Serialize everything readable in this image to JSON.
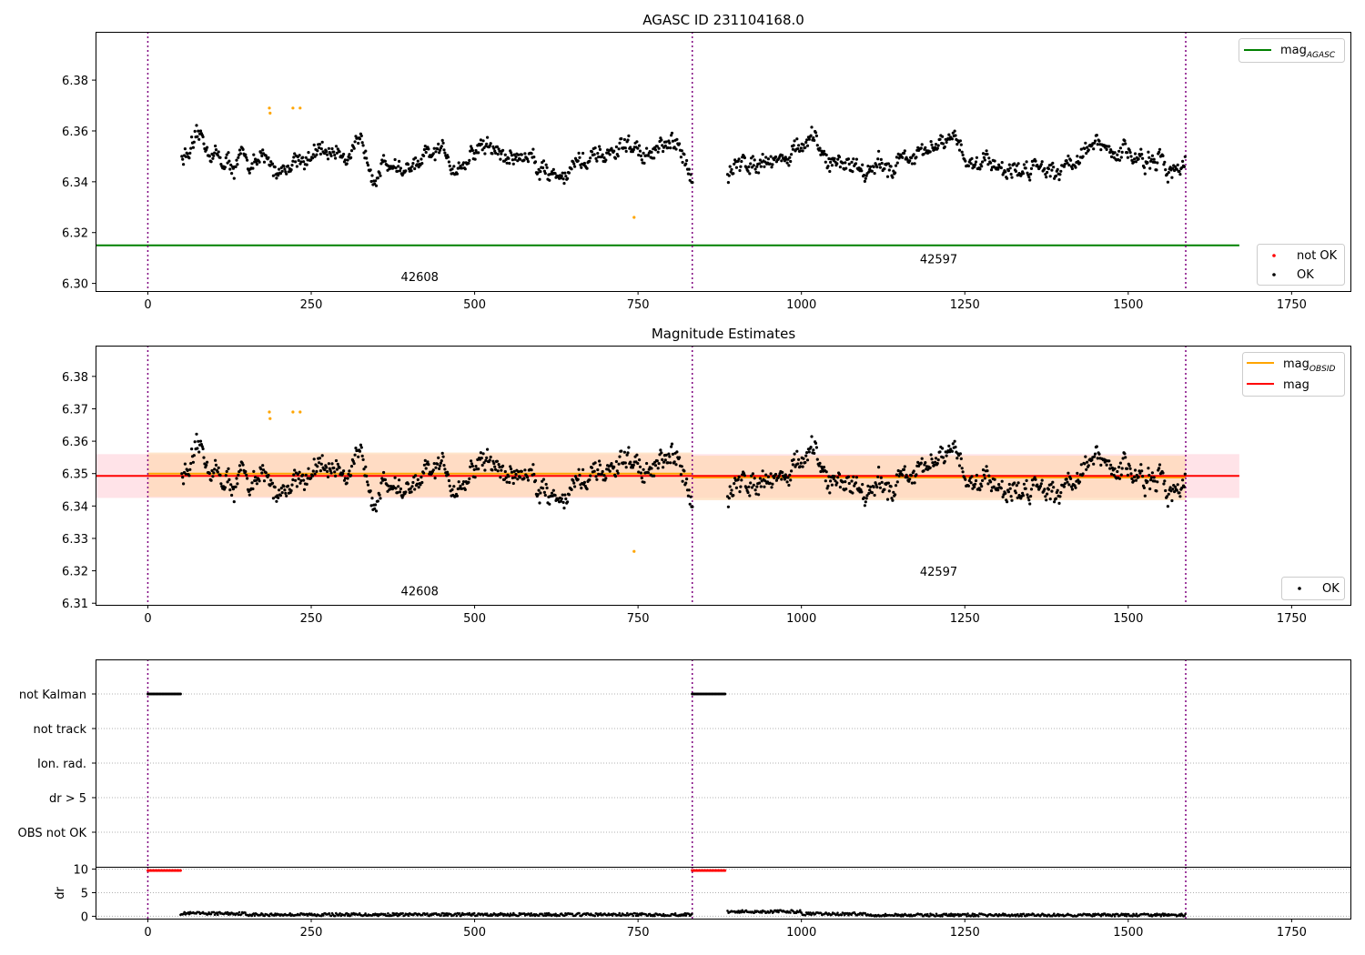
{
  "colors": {
    "ok": "#000000",
    "not_ok": "#ff0000",
    "flagged": "#ffa500",
    "mag_agasc": "#008000",
    "mag_obsid": "#ffa500",
    "mag": "#ff0000",
    "obs_boundary": "#800080",
    "band_mag": "#ffc0cb",
    "band_obsid": "#ffd8b0"
  },
  "chart_data": [
    {
      "type": "scatter",
      "title": "AGASC ID 231104168.0",
      "xlim": [
        -80,
        1840
      ],
      "ylim": [
        6.297,
        6.399
      ],
      "xticks": [
        0,
        250,
        500,
        750,
        1000,
        1250,
        1500,
        1750
      ],
      "yticks": [
        6.3,
        6.32,
        6.34,
        6.36,
        6.38
      ],
      "ytick_labels": [
        "6.30",
        "6.32",
        "6.34",
        "6.36",
        "6.38"
      ],
      "grid": false,
      "series": [
        {
          "name": "OK",
          "role": "ok",
          "x_range": [
            52,
            1588
          ],
          "y_mean": 6.349,
          "y_spread": 0.0075
        },
        {
          "name": "not OK",
          "role": "not_ok",
          "points": []
        },
        {
          "role": "flagged",
          "points": [
            [
              186,
              6.369
            ],
            [
              187,
              6.367
            ],
            [
              222,
              6.369
            ],
            [
              233,
              6.369
            ],
            [
              744,
              6.326
            ]
          ]
        }
      ],
      "lines": [
        {
          "name": "mag_AGASC",
          "label_main": "mag",
          "label_sub": "AGASC",
          "y": 6.315,
          "x_range": [
            -80,
            1670
          ],
          "role": "mag_agasc"
        }
      ],
      "obs_boundaries": [
        0,
        833,
        1588
      ],
      "obs_labels": [
        {
          "text": "42608",
          "x": 416,
          "y": 6.301
        },
        {
          "text": "42597",
          "x": 1210,
          "y": 6.308
        }
      ],
      "legends": [
        {
          "position": "top-right",
          "entries": [
            {
              "label_main": "mag",
              "label_sub": "AGASC",
              "kind": "line",
              "role": "mag_agasc"
            }
          ]
        },
        {
          "position": "bottom-right",
          "entries": [
            {
              "label": "not OK",
              "kind": "marker",
              "role": "not_ok"
            },
            {
              "label": "OK",
              "kind": "marker",
              "role": "ok"
            }
          ]
        }
      ]
    },
    {
      "type": "scatter",
      "title": "Magnitude Estimates",
      "xlim": [
        -80,
        1840
      ],
      "ylim": [
        6.3095,
        6.3895
      ],
      "xticks": [
        0,
        250,
        500,
        750,
        1000,
        1250,
        1500,
        1750
      ],
      "yticks": [
        6.31,
        6.32,
        6.33,
        6.34,
        6.35,
        6.36,
        6.37,
        6.38
      ],
      "ytick_labels": [
        "6.31",
        "6.32",
        "6.33",
        "6.34",
        "6.35",
        "6.36",
        "6.37",
        "6.38"
      ],
      "grid": false,
      "series": [
        {
          "name": "OK",
          "role": "ok",
          "x_range": [
            52,
            1588
          ],
          "y_mean": 6.349,
          "y_spread": 0.0075
        },
        {
          "role": "flagged",
          "points": [
            [
              186,
              6.369
            ],
            [
              187,
              6.367
            ],
            [
              222,
              6.369
            ],
            [
              233,
              6.369
            ],
            [
              744,
              6.326
            ]
          ]
        }
      ],
      "bands": [
        {
          "role": "band_mag",
          "x_range": [
            -80,
            1670
          ],
          "y_range": [
            6.3425,
            6.356
          ]
        },
        {
          "role": "band_obsid",
          "x_range": [
            0,
            833
          ],
          "y_range": [
            6.3428,
            6.3565
          ]
        },
        {
          "role": "band_obsid",
          "x_range": [
            833,
            1588
          ],
          "y_range": [
            6.3418,
            6.3555
          ]
        }
      ],
      "lines": [
        {
          "name": "mag_OBSID",
          "role": "mag_obsid",
          "segments": [
            {
              "x_range": [
                0,
                833
              ],
              "y": 6.35
            },
            {
              "x_range": [
                833,
                1588
              ],
              "y": 6.3488
            }
          ]
        },
        {
          "name": "mag",
          "role": "mag",
          "segments": [
            {
              "x_range": [
                -80,
                1670
              ],
              "y": 6.3493
            }
          ]
        }
      ],
      "obs_boundaries": [
        0,
        833,
        1588
      ],
      "obs_labels": [
        {
          "text": "42608",
          "x": 416,
          "y": 6.3125
        },
        {
          "text": "42597",
          "x": 1210,
          "y": 6.3185
        }
      ],
      "legends": [
        {
          "position": "top-right",
          "entries": [
            {
              "label_main": "mag",
              "label_sub": "OBSID",
              "kind": "line",
              "role": "mag_obsid"
            },
            {
              "label": "mag",
              "kind": "line",
              "role": "mag"
            }
          ]
        },
        {
          "position": "bottom-right",
          "entries": [
            {
              "label": "OK",
              "kind": "marker",
              "role": "ok"
            }
          ]
        }
      ]
    },
    {
      "type": "scatter",
      "title": "",
      "xlim": [
        -80,
        1840
      ],
      "categories": [
        "not Kalman",
        "not track",
        "Ion. rad.",
        "dr > 5",
        "OBS not OK"
      ],
      "grid": true,
      "flag_runs": [
        {
          "category": "not Kalman",
          "x_range": [
            0,
            50
          ]
        },
        {
          "category": "not Kalman",
          "x_range": [
            833,
            883
          ]
        }
      ],
      "obs_boundaries": [
        0,
        833,
        1588
      ]
    },
    {
      "type": "scatter",
      "title": "",
      "xlim": [
        -80,
        1840
      ],
      "ylim": [
        -0.5,
        10.5
      ],
      "ylabel": "dr",
      "xticks": [
        0,
        250,
        500,
        750,
        1000,
        1250,
        1500,
        1750
      ],
      "yticks": [
        0,
        5,
        10
      ],
      "grid": true,
      "series": [
        {
          "role": "not_ok",
          "runs": [
            {
              "x_range": [
                0,
                50
              ],
              "y": 9.7
            },
            {
              "x_range": [
                833,
                883
              ],
              "y": 9.7
            }
          ]
        },
        {
          "role": "ok",
          "segments": [
            {
              "x_range": [
                50,
                150
              ],
              "y_mean": 0.6
            },
            {
              "x_range": [
                150,
                833
              ],
              "y_mean": 0.35
            },
            {
              "x_range": [
                887,
                1000
              ],
              "y_mean": 1.0
            },
            {
              "x_range": [
                1000,
                1100
              ],
              "y_mean": 0.5
            },
            {
              "x_range": [
                1100,
                1588
              ],
              "y_mean": 0.25
            }
          ]
        }
      ],
      "obs_boundaries": [
        0,
        833,
        1588
      ]
    }
  ]
}
